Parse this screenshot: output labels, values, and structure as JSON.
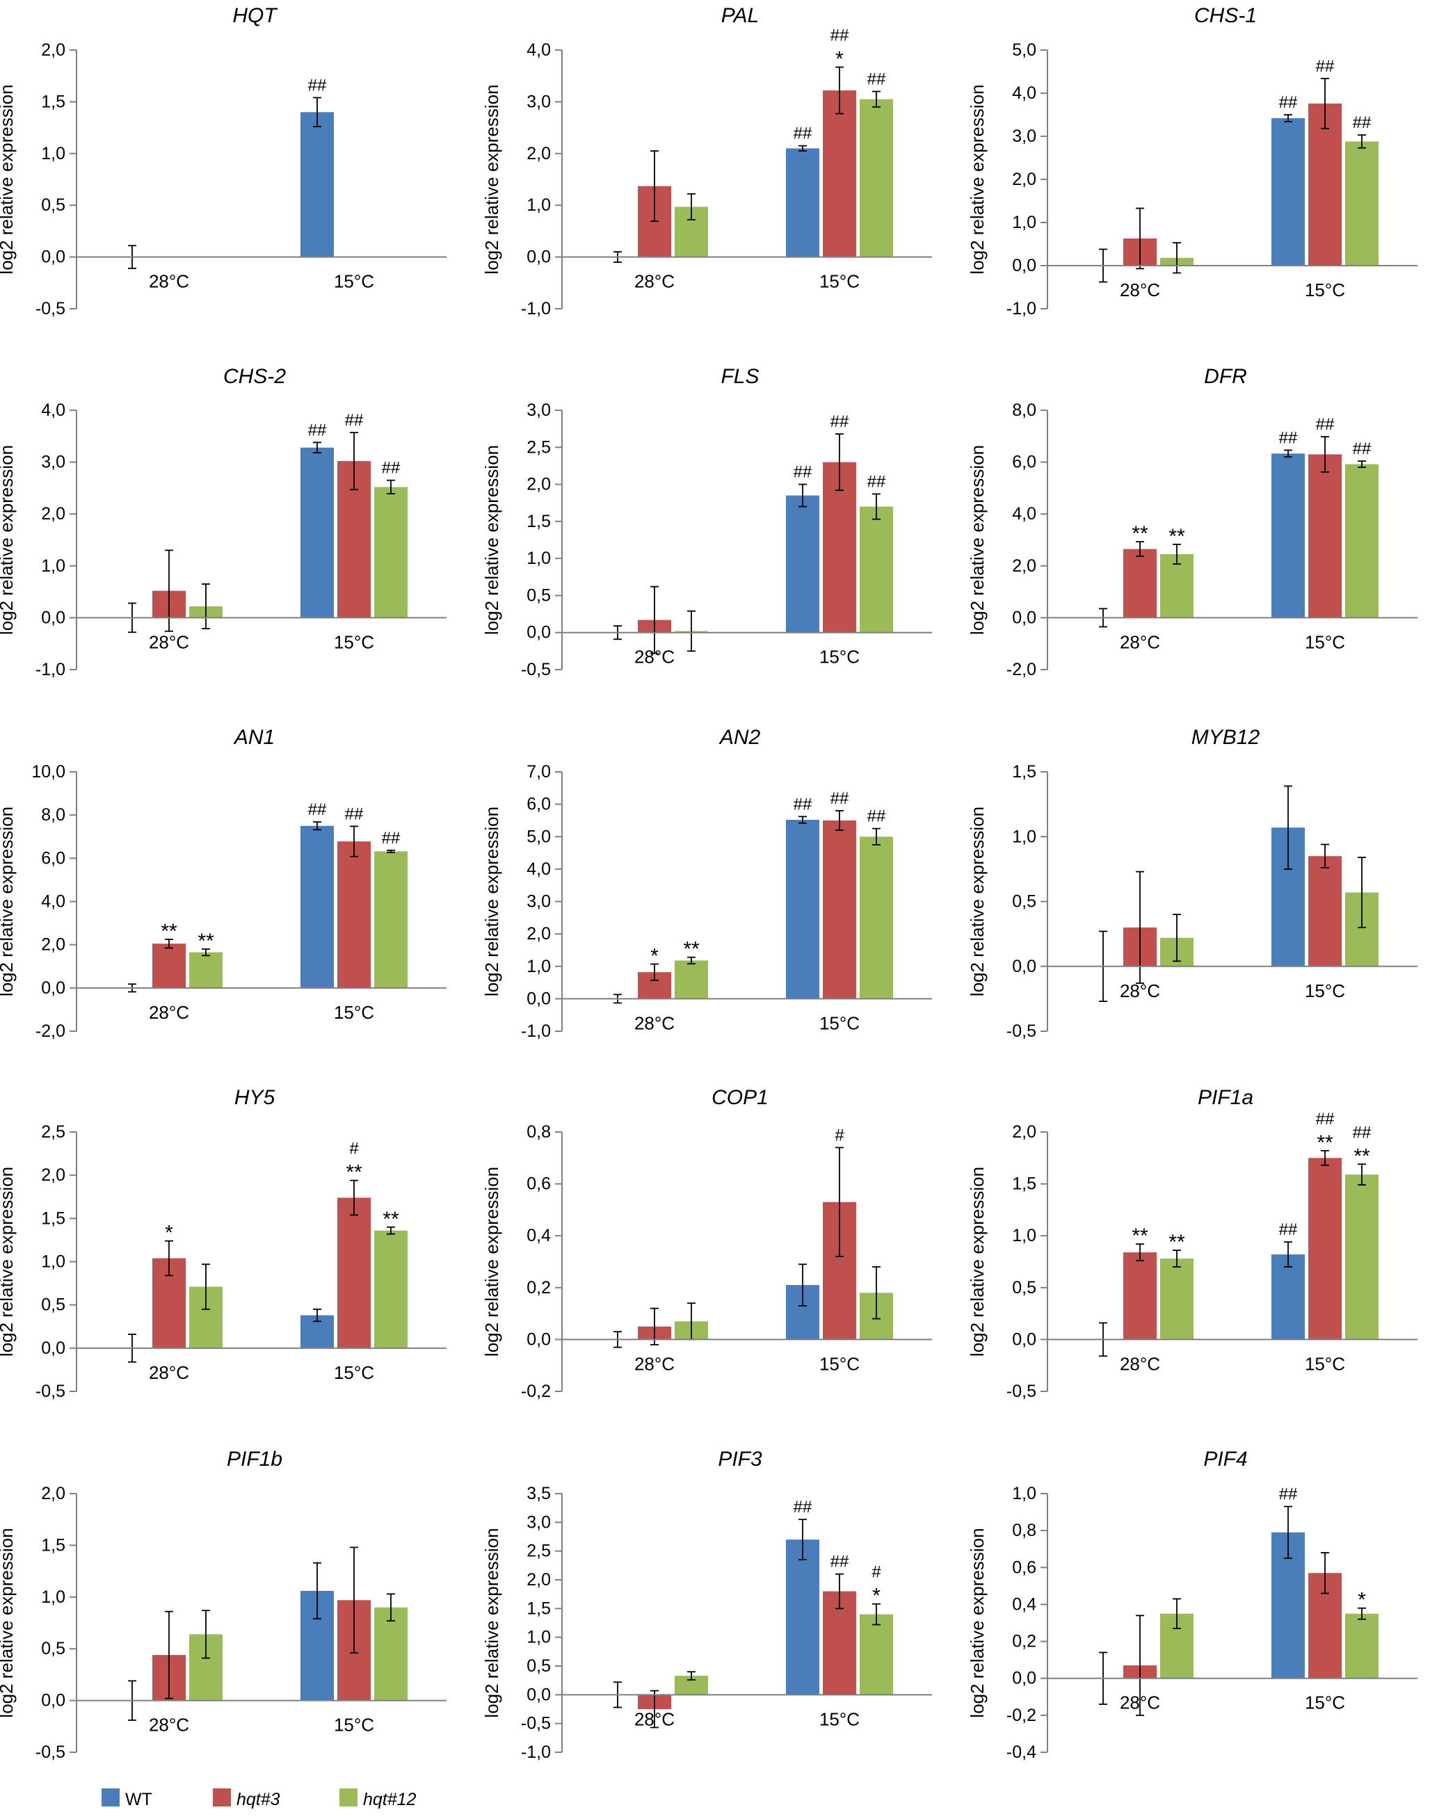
{
  "colors": {
    "WT": "#4a7ebb",
    "hqt3": "#c0504d",
    "hqt12": "#9bbb59",
    "axis": "#7f7f7f"
  },
  "legend": {
    "items": [
      {
        "key": "WT",
        "label": "WT",
        "italic": false
      },
      {
        "key": "hqt3",
        "label": "hqt#3",
        "italic": true
      },
      {
        "key": "hqt12",
        "label": "hqt#12",
        "italic": true
      }
    ]
  },
  "chart_data": [
    {
      "type": "bar",
      "title": "HQT",
      "ylabel": "log2 relative expression",
      "ylim": [
        -0.5,
        2.0
      ],
      "yticks": [
        "-0,5",
        "0,0",
        "0,5",
        "1,0",
        "1,5",
        "2,0"
      ],
      "categories": [
        "28°C",
        "15°C"
      ],
      "series": [
        {
          "name": "WT",
          "values": [
            0.0,
            1.4
          ],
          "errors": [
            0.11,
            0.14
          ],
          "labels": [
            "",
            "##"
          ]
        }
      ]
    },
    {
      "type": "bar",
      "title": "PAL",
      "ylabel": "log2 relative expression",
      "ylim": [
        -1.0,
        4.0
      ],
      "yticks": [
        "-1,0",
        "0,0",
        "1,0",
        "2,0",
        "3,0",
        "4,0"
      ],
      "categories": [
        "28°C",
        "15°C"
      ],
      "series": [
        {
          "name": "WT",
          "values": [
            0.0,
            2.1
          ],
          "errors": [
            0.1,
            0.05
          ],
          "labels": [
            "",
            "##"
          ]
        },
        {
          "name": "hqt#3",
          "values": [
            1.37,
            3.22
          ],
          "errors": [
            0.68,
            0.45
          ],
          "labels": [
            "",
            "##\n*"
          ]
        },
        {
          "name": "hqt#12",
          "values": [
            0.97,
            3.05
          ],
          "errors": [
            0.25,
            0.15
          ],
          "labels": [
            "",
            "##"
          ]
        }
      ]
    },
    {
      "type": "bar",
      "title": "CHS-1",
      "ylabel": "log2 relative expression",
      "ylim": [
        -1.0,
        5.0
      ],
      "yticks": [
        "-1,0",
        "0,0",
        "1,0",
        "2,0",
        "3,0",
        "4,0",
        "5,0"
      ],
      "categories": [
        "28°C",
        "15°C"
      ],
      "series": [
        {
          "name": "WT",
          "values": [
            0.0,
            3.42
          ],
          "errors": [
            0.38,
            0.08
          ],
          "labels": [
            "",
            "##"
          ]
        },
        {
          "name": "hqt#3",
          "values": [
            0.63,
            3.76
          ],
          "errors": [
            0.7,
            0.58
          ],
          "labels": [
            "",
            "##"
          ]
        },
        {
          "name": "hqt#12",
          "values": [
            0.18,
            2.88
          ],
          "errors": [
            0.35,
            0.15
          ],
          "labels": [
            "",
            "##"
          ]
        }
      ]
    },
    {
      "type": "bar",
      "title": "CHS-2",
      "ylabel": "log2 relative expression",
      "ylim": [
        -1.0,
        4.0
      ],
      "yticks": [
        "-1,0",
        "0,0",
        "1,0",
        "2,0",
        "3,0",
        "4,0"
      ],
      "categories": [
        "28°C",
        "15°C"
      ],
      "series": [
        {
          "name": "WT",
          "values": [
            0.0,
            3.28
          ],
          "errors": [
            0.28,
            0.1
          ],
          "labels": [
            "",
            "##"
          ]
        },
        {
          "name": "hqt#3",
          "values": [
            0.52,
            3.02
          ],
          "errors": [
            0.78,
            0.55
          ],
          "labels": [
            "",
            "##"
          ]
        },
        {
          "name": "hqt#12",
          "values": [
            0.22,
            2.52
          ],
          "errors": [
            0.43,
            0.13
          ],
          "labels": [
            "",
            "##"
          ]
        }
      ]
    },
    {
      "type": "bar",
      "title": "FLS",
      "ylabel": "log2 relative expression",
      "ylim": [
        -0.5,
        3.0
      ],
      "yticks": [
        "-0,5",
        "0,0",
        "0,5",
        "1,0",
        "1,5",
        "2,0",
        "2,5",
        "3,0"
      ],
      "categories": [
        "28°C",
        "15°C"
      ],
      "series": [
        {
          "name": "WT",
          "values": [
            0.0,
            1.85
          ],
          "errors": [
            0.09,
            0.15
          ],
          "labels": [
            "",
            "##"
          ]
        },
        {
          "name": "hqt#3",
          "values": [
            0.17,
            2.3
          ],
          "errors": [
            0.45,
            0.38
          ],
          "labels": [
            "",
            "##"
          ]
        },
        {
          "name": "hqt#12",
          "values": [
            0.02,
            1.7
          ],
          "errors": [
            0.27,
            0.17
          ],
          "labels": [
            "",
            "##"
          ]
        }
      ]
    },
    {
      "type": "bar",
      "title": "DFR",
      "ylabel": "log2 relative expression",
      "ylim": [
        -2.0,
        8.0
      ],
      "yticks": [
        "-2,0",
        "0,0",
        "2,0",
        "4,0",
        "6,0",
        "8,0"
      ],
      "categories": [
        "28°C",
        "15°C"
      ],
      "series": [
        {
          "name": "WT",
          "values": [
            0.0,
            6.33
          ],
          "errors": [
            0.35,
            0.13
          ],
          "labels": [
            "",
            "##"
          ]
        },
        {
          "name": "hqt#3",
          "values": [
            2.65,
            6.3
          ],
          "errors": [
            0.28,
            0.68
          ],
          "labels": [
            "**",
            "##"
          ]
        },
        {
          "name": "hqt#12",
          "values": [
            2.45,
            5.92
          ],
          "errors": [
            0.38,
            0.12
          ],
          "labels": [
            "**",
            "##"
          ]
        }
      ]
    },
    {
      "type": "bar",
      "title": "AN1",
      "ylabel": "log2 relative expression",
      "ylim": [
        -2.0,
        10.0
      ],
      "yticks": [
        "-2,0",
        "0,0",
        "2,0",
        "4,0",
        "6,0",
        "8,0",
        "10,0"
      ],
      "categories": [
        "28°C",
        "15°C"
      ],
      "series": [
        {
          "name": "WT",
          "values": [
            0.0,
            7.5
          ],
          "errors": [
            0.18,
            0.18
          ],
          "labels": [
            "",
            "##"
          ]
        },
        {
          "name": "hqt#3",
          "values": [
            2.05,
            6.78
          ],
          "errors": [
            0.2,
            0.7
          ],
          "labels": [
            "**",
            "##"
          ]
        },
        {
          "name": "hqt#12",
          "values": [
            1.65,
            6.32
          ],
          "errors": [
            0.15,
            0.05
          ],
          "labels": [
            "**",
            "##"
          ]
        }
      ]
    },
    {
      "type": "bar",
      "title": "AN2",
      "ylabel": "log2 relative expression",
      "ylim": [
        -1.0,
        7.0
      ],
      "yticks": [
        "-1,0",
        "0,0",
        "1,0",
        "2,0",
        "3,0",
        "4,0",
        "5,0",
        "6,0",
        "7,0"
      ],
      "categories": [
        "28°C",
        "15°C"
      ],
      "series": [
        {
          "name": "WT",
          "values": [
            0.0,
            5.52
          ],
          "errors": [
            0.13,
            0.1
          ],
          "labels": [
            "",
            "##"
          ]
        },
        {
          "name": "hqt#3",
          "values": [
            0.82,
            5.5
          ],
          "errors": [
            0.25,
            0.3
          ],
          "labels": [
            "*",
            "##"
          ]
        },
        {
          "name": "hqt#12",
          "values": [
            1.18,
            5.0
          ],
          "errors": [
            0.1,
            0.25
          ],
          "labels": [
            "**",
            "##"
          ]
        }
      ]
    },
    {
      "type": "bar",
      "title": "MYB12",
      "ylabel": "log2 relative expression",
      "ylim": [
        -0.5,
        1.5
      ],
      "yticks": [
        "-0,5",
        "0,0",
        "0,5",
        "1,0",
        "1,5"
      ],
      "categories": [
        "28°C",
        "15°C"
      ],
      "series": [
        {
          "name": "WT",
          "values": [
            0.0,
            1.07
          ],
          "errors": [
            0.27,
            0.32
          ],
          "labels": [
            "",
            ""
          ]
        },
        {
          "name": "hqt#3",
          "values": [
            0.3,
            0.85
          ],
          "errors": [
            0.43,
            0.09
          ],
          "labels": [
            "",
            ""
          ]
        },
        {
          "name": "hqt#12",
          "values": [
            0.22,
            0.57
          ],
          "errors": [
            0.18,
            0.27
          ],
          "labels": [
            "",
            ""
          ]
        }
      ]
    },
    {
      "type": "bar",
      "title": "HY5",
      "ylabel": "log2 relative expression",
      "ylim": [
        -0.5,
        2.5
      ],
      "yticks": [
        "-0,5",
        "0,0",
        "0,5",
        "1,0",
        "1,5",
        "2,0",
        "2,5"
      ],
      "categories": [
        "28°C",
        "15°C"
      ],
      "series": [
        {
          "name": "WT",
          "values": [
            0.0,
            0.38
          ],
          "errors": [
            0.16,
            0.07
          ],
          "labels": [
            "",
            ""
          ]
        },
        {
          "name": "hqt#3",
          "values": [
            1.04,
            1.74
          ],
          "errors": [
            0.2,
            0.2
          ],
          "labels": [
            "*",
            "#\n**"
          ]
        },
        {
          "name": "hqt#12",
          "values": [
            0.71,
            1.36
          ],
          "errors": [
            0.26,
            0.04
          ],
          "labels": [
            "",
            "**"
          ]
        }
      ]
    },
    {
      "type": "bar",
      "title": "COP1",
      "ylabel": "log2 relative expression",
      "ylim": [
        -0.2,
        0.8
      ],
      "yticks": [
        "-0,2",
        "0,0",
        "0,2",
        "0,4",
        "0,6",
        "0,8"
      ],
      "categories": [
        "28°C",
        "15°C"
      ],
      "series": [
        {
          "name": "WT",
          "values": [
            0.0,
            0.21
          ],
          "errors": [
            0.03,
            0.08
          ],
          "labels": [
            "",
            ""
          ]
        },
        {
          "name": "hqt#3",
          "values": [
            0.05,
            0.53
          ],
          "errors": [
            0.07,
            0.21
          ],
          "labels": [
            "",
            "#"
          ]
        },
        {
          "name": "hqt#12",
          "values": [
            0.07,
            0.18
          ],
          "errors": [
            0.07,
            0.1
          ],
          "labels": [
            "",
            ""
          ]
        }
      ]
    },
    {
      "type": "bar",
      "title": "PIF1a",
      "ylabel": "log2 relative expression",
      "ylim": [
        -0.5,
        2.0
      ],
      "yticks": [
        "-0,5",
        "0,0",
        "0,5",
        "1,0",
        "1,5",
        "2,0"
      ],
      "categories": [
        "28°C",
        "15°C"
      ],
      "series": [
        {
          "name": "WT",
          "values": [
            0.0,
            0.82
          ],
          "errors": [
            0.16,
            0.12
          ],
          "labels": [
            "",
            "##"
          ]
        },
        {
          "name": "hqt#3",
          "values": [
            0.84,
            1.75
          ],
          "errors": [
            0.08,
            0.07
          ],
          "labels": [
            "**",
            "##\n**"
          ]
        },
        {
          "name": "hqt#12",
          "values": [
            0.78,
            1.59
          ],
          "errors": [
            0.08,
            0.1
          ],
          "labels": [
            "**",
            "##\n**"
          ]
        }
      ]
    },
    {
      "type": "bar",
      "title": "PIF1b",
      "ylabel": "log2 relative expression",
      "ylim": [
        -0.5,
        2.0
      ],
      "yticks": [
        "-0,5",
        "0,0",
        "0,5",
        "1,0",
        "1,5",
        "2,0"
      ],
      "categories": [
        "28°C",
        "15°C"
      ],
      "series": [
        {
          "name": "WT",
          "values": [
            0.0,
            1.06
          ],
          "errors": [
            0.19,
            0.27
          ],
          "labels": [
            "",
            ""
          ]
        },
        {
          "name": "hqt#3",
          "values": [
            0.44,
            0.97
          ],
          "errors": [
            0.42,
            0.51
          ],
          "labels": [
            "",
            ""
          ]
        },
        {
          "name": "hqt#12",
          "values": [
            0.64,
            0.9
          ],
          "errors": [
            0.23,
            0.13
          ],
          "labels": [
            "",
            ""
          ]
        }
      ]
    },
    {
      "type": "bar",
      "title": "PIF3",
      "ylabel": "log2 relative expression",
      "ylim": [
        -1.0,
        3.5
      ],
      "yticks": [
        "-1,0",
        "-0,5",
        "0,0",
        "0,5",
        "1,0",
        "1,5",
        "2,0",
        "2,5",
        "3,0",
        "3,5"
      ],
      "categories": [
        "28°C",
        "15°C"
      ],
      "series": [
        {
          "name": "WT",
          "values": [
            0.0,
            2.7
          ],
          "errors": [
            0.22,
            0.35
          ],
          "labels": [
            "",
            "##"
          ]
        },
        {
          "name": "hqt#3",
          "values": [
            -0.25,
            1.8
          ],
          "errors": [
            0.32,
            0.3
          ],
          "labels": [
            "",
            "##"
          ]
        },
        {
          "name": "hqt#12",
          "values": [
            0.33,
            1.4
          ],
          "errors": [
            0.07,
            0.18
          ],
          "labels": [
            "",
            "#\n*"
          ]
        }
      ]
    },
    {
      "type": "bar",
      "title": "PIF4",
      "ylabel": "log2 relative expression",
      "ylim": [
        -0.4,
        1.0
      ],
      "yticks": [
        "-0,4",
        "-0,2",
        "0,0",
        "0,2",
        "0,4",
        "0,6",
        "0,8",
        "1,0"
      ],
      "categories": [
        "28°C",
        "15°C"
      ],
      "series": [
        {
          "name": "WT",
          "values": [
            0.0,
            0.79
          ],
          "errors": [
            0.14,
            0.14
          ],
          "labels": [
            "",
            "##"
          ]
        },
        {
          "name": "hqt#3",
          "values": [
            0.07,
            0.57
          ],
          "errors": [
            0.27,
            0.11
          ],
          "labels": [
            "",
            ""
          ]
        },
        {
          "name": "hqt#12",
          "values": [
            0.35,
            0.35
          ],
          "errors": [
            0.08,
            0.03
          ],
          "labels": [
            "",
            "*"
          ]
        }
      ]
    }
  ]
}
